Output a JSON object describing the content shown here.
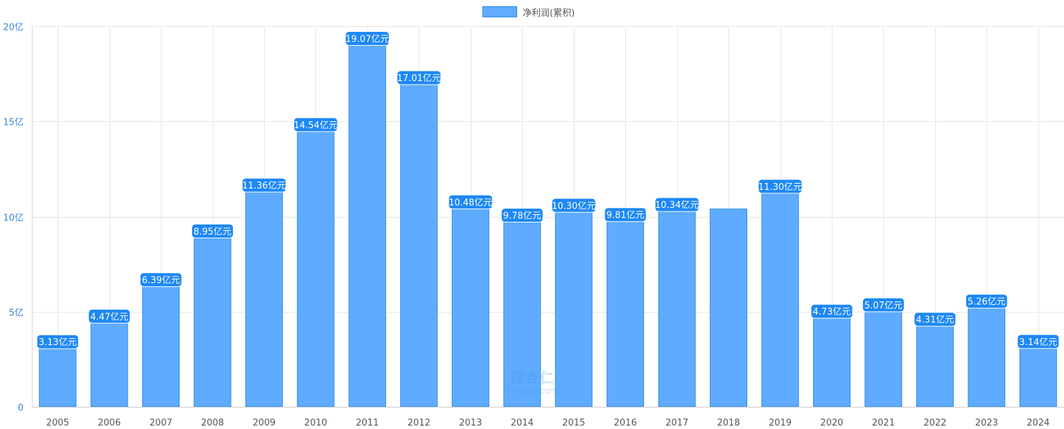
{
  "legend": {
    "label": "净利润(累积)",
    "color": "#5eabff"
  },
  "watermark": {
    "logo": "理杏仁",
    "site": "lixinger.com"
  },
  "colors": {
    "bar_fill": "#5eabff",
    "bar_stroke": "#2f8ae8",
    "label_bg": "#1e88f5",
    "label_text": "#ffffff",
    "axis_text": "#555555",
    "y_tick_text": "#3a86d6",
    "grid": "#e6e6e6"
  },
  "chart_data": {
    "type": "bar",
    "categories": [
      "2005",
      "2006",
      "2007",
      "2008",
      "2009",
      "2010",
      "2011",
      "2012",
      "2013",
      "2014",
      "2015",
      "2016",
      "2017",
      "2018",
      "2019",
      "2020",
      "2021",
      "2022",
      "2023",
      "2024"
    ],
    "series": [
      {
        "name": "净利润(累积)",
        "values": [
          3.13,
          4.47,
          6.39,
          8.95,
          11.36,
          14.54,
          19.07,
          17.01,
          10.48,
          9.78,
          10.3,
          9.81,
          10.34,
          10.4,
          11.3,
          4.73,
          5.07,
          4.31,
          5.26,
          3.14
        ],
        "data_labels": [
          "3.13亿元",
          "4.47亿元",
          "6.39亿元",
          "8.95亿元",
          "11.36亿元",
          "14.54亿元",
          "19.07亿元",
          "17.01亿元",
          "10.48亿元",
          "9.78亿元",
          "10.30亿元",
          "9.81亿元",
          "10.34亿元",
          "",
          "11.30亿元",
          "4.73亿元",
          "5.07亿元",
          "4.31亿元",
          "5.26亿元",
          "3.14亿元"
        ]
      }
    ],
    "yticks": [
      0,
      5,
      10,
      15,
      20
    ],
    "ytick_labels": [
      "0",
      "5亿",
      "10亿",
      "15亿",
      "20亿"
    ],
    "ylim": [
      0,
      20
    ],
    "grid": true,
    "legend_position": "top-center"
  }
}
